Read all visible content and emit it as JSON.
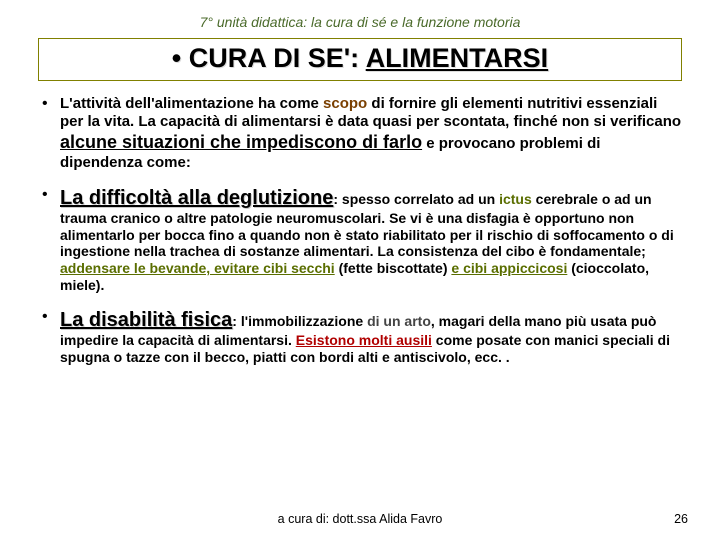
{
  "header": "7° unità didattica: la cura di sé e la funzione motoria",
  "title_prefix": "• CURA DI SE': ",
  "title_underlined": "ALIMENTARSI",
  "p1": {
    "t1": "L'attività dell'alimentazione ha come ",
    "scopo": "scopo",
    "t2": " di fornire gli elementi nutritivi essenziali per la vita. La capacità di alimentarsi è data quasi per scontata, finché non si verificano ",
    "big": "alcune situazioni che impediscono di farlo",
    "t3": " e provocano problemi di dipendenza come:"
  },
  "p2": {
    "head": "La difficoltà alla deglutizione",
    "t1": ": spesso correlato ad un ",
    "ictus": "ictus",
    "t2": " cerebrale o ad un trauma cranico o altre patologie neuromuscolari. Se vi è una disfagia è opportuno non alimentarlo per bocca fino a quando non è stato riabilitato per il rischio di soffocamento o di ingestione nella trachea di sostanze alimentari. La consistenza del cibo è fondamentale; ",
    "g1": "addensare le bevande, evitare cibi secchi",
    "t3": " (fette biscottate) ",
    "g2": "e cibi appiccicosi",
    "t4": " (cioccolato, miele)."
  },
  "p3": {
    "head": "La disabilità fisica",
    "t1": ": l'immobilizzazione ",
    "arto": "di un arto",
    "t2": ",  magari della mano più usata può impedire la capacità di alimentarsi. ",
    "r1": "Esistono molti ausili",
    "t3": " come posate con manici speciali di spugna o tazze con il becco, piatti con bordi alti e antiscivolo, ecc. ."
  },
  "footer": "a cura di: dott.ssa Alida Favro",
  "page": "26"
}
